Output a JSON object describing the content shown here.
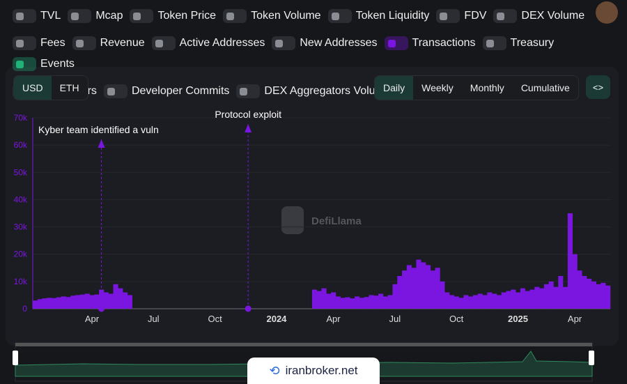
{
  "toggles": [
    {
      "label": "TVL",
      "on": false
    },
    {
      "label": "Mcap",
      "on": false
    },
    {
      "label": "Token Price",
      "on": false
    },
    {
      "label": "Token Volume",
      "on": false
    },
    {
      "label": "Token Liquidity",
      "on": false
    },
    {
      "label": "FDV",
      "on": false
    },
    {
      "label": "DEX Volume",
      "on": false
    },
    {
      "label": "Fees",
      "on": false
    },
    {
      "label": "Revenue",
      "on": false
    },
    {
      "label": "Active Addresses",
      "on": false
    },
    {
      "label": "New Addresses",
      "on": false
    },
    {
      "label": "Transactions",
      "on": true,
      "color": "#7a16e0"
    },
    {
      "label": "Treasury",
      "on": false
    },
    {
      "label": "Events",
      "on": true,
      "color": "#1fb37a"
    },
    {
      "label": "Developers",
      "on": false
    },
    {
      "label": "Developer Commits",
      "on": false
    },
    {
      "label": "DEX Aggregators Volume",
      "on": false
    }
  ],
  "currency_buttons": [
    {
      "label": "USD",
      "active": true
    },
    {
      "label": "ETH",
      "active": false
    }
  ],
  "period_buttons": [
    {
      "label": "Daily",
      "active": true
    },
    {
      "label": "Weekly",
      "active": false
    },
    {
      "label": "Monthly",
      "active": false
    },
    {
      "label": "Cumulative",
      "active": false
    }
  ],
  "embed_button": "<>",
  "watermark": "DefiLlama",
  "footer_badge": "iranbroker.net",
  "chart_data": {
    "type": "bar",
    "series": [
      {
        "name": "Transactions",
        "color": "#7a16e0",
        "values": [
          3000,
          3500,
          3800,
          4000,
          3900,
          4200,
          4500,
          4300,
          4800,
          5000,
          5200,
          5500,
          5000,
          5200,
          7000,
          6000,
          5500,
          9000,
          7500,
          6000,
          5000,
          null,
          null,
          null,
          null,
          null,
          null,
          null,
          null,
          null,
          null,
          null,
          null,
          null,
          null,
          null,
          null,
          null,
          null,
          null,
          null,
          null,
          null,
          null,
          null,
          null,
          null,
          null,
          null,
          null,
          null,
          null,
          null,
          null,
          null,
          null,
          null,
          null,
          null,
          7000,
          6500,
          7500,
          5500,
          6000,
          4500,
          4000,
          4200,
          3800,
          4500,
          4000,
          4300,
          5000,
          4800,
          5500,
          4500,
          5000,
          9000,
          12000,
          14000,
          16000,
          15000,
          18000,
          17000,
          16000,
          14000,
          15000,
          10000,
          6000,
          5000,
          4500,
          4000,
          5000,
          4500,
          5000,
          5500,
          5000,
          6000,
          5500,
          5000,
          6000,
          6500,
          7000,
          6000,
          7500,
          6500,
          7000,
          8000,
          7500,
          9000,
          10000,
          8000,
          12000,
          8000,
          35000,
          20000,
          14000,
          12000,
          11000,
          10000,
          9000,
          9500,
          8500
        ]
      }
    ],
    "categories": [
      null,
      null,
      null,
      null,
      null,
      null,
      null,
      null,
      null,
      null,
      null,
      null,
      "Apr",
      null,
      null,
      null,
      null,
      null,
      null,
      null,
      null,
      null,
      null,
      null,
      null,
      "Jul",
      null,
      null,
      null,
      null,
      null,
      null,
      null,
      null,
      null,
      null,
      null,
      null,
      "Oct",
      null,
      null,
      null,
      null,
      null,
      null,
      null,
      null,
      null,
      null,
      null,
      null,
      "2024",
      null,
      null,
      null,
      null,
      null,
      null,
      null,
      null,
      null,
      null,
      null,
      "Apr",
      null,
      null,
      null,
      null,
      null,
      null,
      null,
      null,
      null,
      null,
      null,
      null,
      "Jul",
      null,
      null,
      null,
      null,
      null,
      null,
      null,
      null,
      null,
      null,
      null,
      null,
      "Oct",
      null,
      null,
      null,
      null,
      null,
      null,
      null,
      null,
      null,
      null,
      null,
      null,
      "2025",
      null,
      null,
      null,
      null,
      null,
      null,
      null,
      null,
      null,
      null,
      null,
      "Apr",
      null,
      null,
      null,
      null,
      null,
      null,
      null
    ],
    "ylim": [
      0,
      70000
    ],
    "yticks": [
      0,
      {
        "value": 10000,
        "label": "10k"
      },
      {
        "value": 20000,
        "label": "20k"
      },
      {
        "value": 30000,
        "label": "30k"
      },
      {
        "value": 40000,
        "label": "40k"
      },
      {
        "value": 50000,
        "label": "50k"
      },
      {
        "value": 60000,
        "label": "60k"
      },
      {
        "value": 70000,
        "label": "70k"
      }
    ],
    "grid": true,
    "annotations": [
      {
        "text": "Kyber team identified a vuln",
        "category_index": 14,
        "color": "#7a16e0"
      },
      {
        "text": "Protocol exploit",
        "category_index": 45,
        "color": "#7a16e0"
      }
    ]
  }
}
